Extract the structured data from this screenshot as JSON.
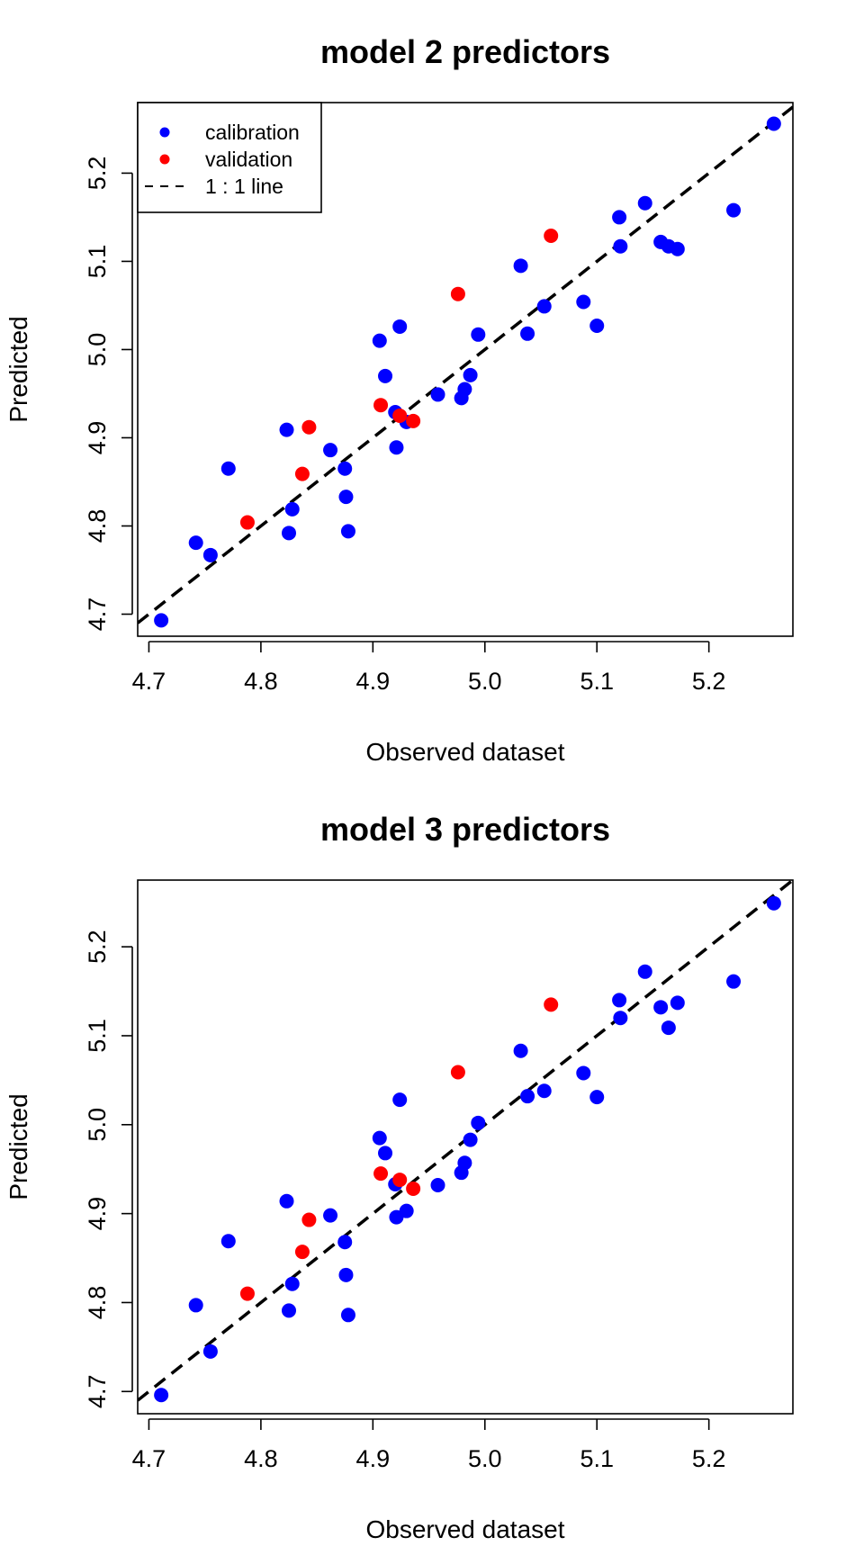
{
  "chart_data": [
    {
      "type": "scatter",
      "title": "model 2 predictors",
      "xlabel": "Observed dataset",
      "ylabel": "Predicted",
      "xlim": [
        4.69,
        5.275
      ],
      "ylim": [
        4.675,
        5.28
      ],
      "xticks": [
        "4.7",
        "4.8",
        "4.9",
        "5.0",
        "5.1",
        "5.2"
      ],
      "yticks": [
        "4.7",
        "4.8",
        "4.9",
        "5.0",
        "5.1",
        "5.2"
      ],
      "grid": false,
      "legend_position": "top-left",
      "legend": [
        "calibration",
        "validation",
        "1 : 1 line"
      ],
      "reference_line": {
        "name": "1 : 1 line",
        "slope": 1,
        "intercept": 0,
        "style": "dashed",
        "color": "#000000"
      },
      "series": [
        {
          "name": "calibration",
          "color": "#0000ff",
          "points": [
            [
              4.711,
              4.693
            ],
            [
              4.742,
              4.781
            ],
            [
              4.755,
              4.767
            ],
            [
              4.771,
              4.865
            ],
            [
              4.823,
              4.909
            ],
            [
              4.825,
              4.792
            ],
            [
              4.828,
              4.819
            ],
            [
              4.862,
              4.886
            ],
            [
              4.875,
              4.865
            ],
            [
              4.876,
              4.833
            ],
            [
              4.878,
              4.794
            ],
            [
              4.906,
              5.01
            ],
            [
              4.911,
              4.97
            ],
            [
              4.92,
              4.929
            ],
            [
              4.921,
              4.889
            ],
            [
              4.924,
              5.026
            ],
            [
              4.93,
              4.918
            ],
            [
              4.958,
              4.949
            ],
            [
              4.979,
              4.945
            ],
            [
              4.982,
              4.955
            ],
            [
              4.987,
              4.971
            ],
            [
              4.994,
              5.017
            ],
            [
              5.032,
              5.095
            ],
            [
              5.038,
              5.018
            ],
            [
              5.053,
              5.049
            ],
            [
              5.088,
              5.054
            ],
            [
              5.1,
              5.027
            ],
            [
              5.12,
              5.15
            ],
            [
              5.121,
              5.117
            ],
            [
              5.143,
              5.166
            ],
            [
              5.157,
              5.122
            ],
            [
              5.164,
              5.117
            ],
            [
              5.172,
              5.114
            ],
            [
              5.222,
              5.158
            ],
            [
              5.258,
              5.256
            ]
          ]
        },
        {
          "name": "validation",
          "color": "#ff0000",
          "points": [
            [
              4.788,
              4.804
            ],
            [
              4.837,
              4.859
            ],
            [
              4.843,
              4.912
            ],
            [
              4.907,
              4.937
            ],
            [
              4.924,
              4.925
            ],
            [
              4.936,
              4.919
            ],
            [
              4.976,
              5.063
            ],
            [
              5.059,
              5.129
            ]
          ]
        }
      ]
    },
    {
      "type": "scatter",
      "title": "model 3 predictors",
      "xlabel": "Observed dataset",
      "ylabel": "Predicted",
      "xlim": [
        4.69,
        5.275
      ],
      "ylim": [
        4.675,
        5.275
      ],
      "xticks": [
        "4.7",
        "4.8",
        "4.9",
        "5.0",
        "5.1",
        "5.2"
      ],
      "yticks": [
        "4.7",
        "4.8",
        "4.9",
        "5.0",
        "5.1",
        "5.2"
      ],
      "grid": false,
      "reference_line": {
        "slope": 1,
        "intercept": 0,
        "style": "dashed",
        "color": "#000000"
      },
      "series": [
        {
          "name": "calibration",
          "color": "#0000ff",
          "points": [
            [
              4.711,
              4.696
            ],
            [
              4.742,
              4.797
            ],
            [
              4.755,
              4.745
            ],
            [
              4.771,
              4.869
            ],
            [
              4.823,
              4.914
            ],
            [
              4.825,
              4.791
            ],
            [
              4.828,
              4.821
            ],
            [
              4.862,
              4.898
            ],
            [
              4.875,
              4.868
            ],
            [
              4.876,
              4.831
            ],
            [
              4.878,
              4.786
            ],
            [
              4.906,
              4.985
            ],
            [
              4.911,
              4.968
            ],
            [
              4.92,
              4.933
            ],
            [
              4.921,
              4.896
            ],
            [
              4.924,
              5.028
            ],
            [
              4.93,
              4.903
            ],
            [
              4.958,
              4.932
            ],
            [
              4.979,
              4.946
            ],
            [
              4.982,
              4.957
            ],
            [
              4.987,
              4.983
            ],
            [
              4.994,
              5.002
            ],
            [
              5.032,
              5.083
            ],
            [
              5.038,
              5.032
            ],
            [
              5.053,
              5.038
            ],
            [
              5.088,
              5.058
            ],
            [
              5.1,
              5.031
            ],
            [
              5.12,
              5.14
            ],
            [
              5.121,
              5.12
            ],
            [
              5.143,
              5.172
            ],
            [
              5.157,
              5.132
            ],
            [
              5.164,
              5.109
            ],
            [
              5.172,
              5.137
            ],
            [
              5.222,
              5.161
            ],
            [
              5.258,
              5.249
            ]
          ]
        },
        {
          "name": "validation",
          "color": "#ff0000",
          "points": [
            [
              4.788,
              4.81
            ],
            [
              4.837,
              4.857
            ],
            [
              4.843,
              4.893
            ],
            [
              4.907,
              4.945
            ],
            [
              4.924,
              4.938
            ],
            [
              4.936,
              4.928
            ],
            [
              4.976,
              5.059
            ],
            [
              5.059,
              5.135
            ]
          ]
        }
      ]
    }
  ]
}
